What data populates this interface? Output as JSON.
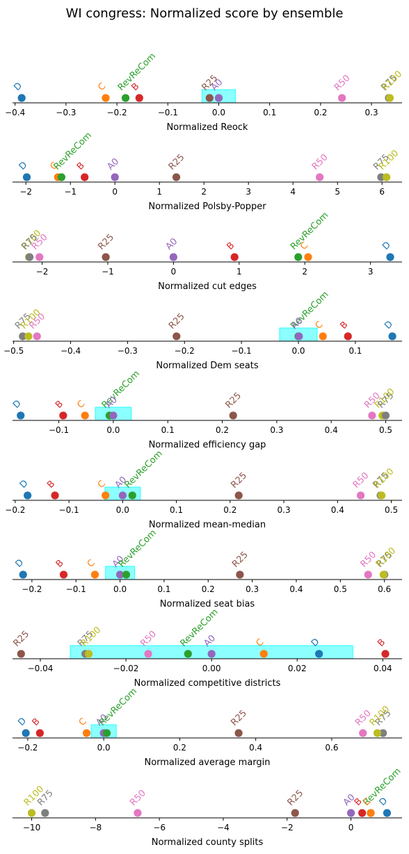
{
  "title": "WI congress: Normalized score by ensemble",
  "colors": {
    "D": "#1f77b4",
    "C": "#ff7f0e",
    "RevReCom": "#2ca02c",
    "B": "#d62728",
    "A0": "#9467bd",
    "R25": "#8c564b",
    "R50": "#e377c2",
    "R75": "#7f7f7f",
    "R100": "#bcbd22",
    "band": "#00ffff"
  },
  "chart_data": [
    {
      "type": "scatter",
      "xlabel": "Normalized Reock",
      "xlim": [
        -0.405,
        0.36
      ],
      "ticks": [
        -0.4,
        -0.3,
        -0.2,
        -0.1,
        0.0,
        0.1,
        0.2,
        0.3
      ],
      "tick_labels": [
        "−0.4",
        "−0.3",
        "−0.2",
        "−0.1",
        "0.0",
        "0.1",
        "0.2",
        "0.3"
      ],
      "band": [
        -0.033,
        0.033
      ],
      "points": [
        {
          "label": "D",
          "x": -0.387
        },
        {
          "label": "C",
          "x": -0.222
        },
        {
          "label": "RevReCom",
          "x": -0.183
        },
        {
          "label": "B",
          "x": -0.156
        },
        {
          "label": "R25",
          "x": -0.018
        },
        {
          "label": "A0",
          "x": 0.0
        },
        {
          "label": "R50",
          "x": 0.242
        },
        {
          "label": "R75",
          "x": 0.334
        },
        {
          "label": "R100",
          "x": 0.336
        }
      ]
    },
    {
      "type": "scatter",
      "xlabel": "Normalized Polsby-Popper",
      "xlim": [
        -2.3,
        6.45
      ],
      "ticks": [
        -2,
        -1,
        0,
        1,
        2,
        3,
        4,
        5,
        6
      ],
      "tick_labels": [
        "−2",
        "−1",
        "0",
        "1",
        "2",
        "3",
        "4",
        "5",
        "6"
      ],
      "band": null,
      "points": [
        {
          "label": "D",
          "x": -1.98
        },
        {
          "label": "C",
          "x": -1.28
        },
        {
          "label": "RevReCom",
          "x": -1.2
        },
        {
          "label": "B",
          "x": -0.68
        },
        {
          "label": "A0",
          "x": 0.0
        },
        {
          "label": "R25",
          "x": 1.38
        },
        {
          "label": "R50",
          "x": 4.6
        },
        {
          "label": "R75",
          "x": 5.98
        },
        {
          "label": "R100",
          "x": 6.1
        }
      ]
    },
    {
      "type": "scatter",
      "xlabel": "Normalized cut edges",
      "xlim": [
        -2.45,
        3.48
      ],
      "ticks": [
        -2,
        -1,
        0,
        1,
        2,
        3
      ],
      "tick_labels": [
        "−2",
        "−1",
        "0",
        "1",
        "2",
        "3"
      ],
      "band": null,
      "points": [
        {
          "label": "R100",
          "x": -2.2
        },
        {
          "label": "R75",
          "x": -2.19
        },
        {
          "label": "R50",
          "x": -2.04
        },
        {
          "label": "R25",
          "x": -1.03
        },
        {
          "label": "A0",
          "x": 0.0
        },
        {
          "label": "B",
          "x": 0.93
        },
        {
          "label": "RevReCom",
          "x": 1.9
        },
        {
          "label": "C",
          "x": 2.05
        },
        {
          "label": "D",
          "x": 3.3
        }
      ]
    },
    {
      "type": "scatter",
      "xlabel": "Normalized Dem seats",
      "xlim": [
        -0.502,
        0.182
      ],
      "ticks": [
        -0.5,
        -0.4,
        -0.3,
        -0.2,
        -0.1,
        0.0,
        0.1
      ],
      "tick_labels": [
        "−0.5",
        "−0.4",
        "−0.3",
        "−0.2",
        "−0.1",
        "0.0",
        "0.1"
      ],
      "band": [
        -0.033,
        0.033
      ],
      "points": [
        {
          "label": "R75",
          "x": -0.484
        },
        {
          "label": "R100",
          "x": -0.474
        },
        {
          "label": "R50",
          "x": -0.459
        },
        {
          "label": "R25",
          "x": -0.214
        },
        {
          "label": "RevReCom",
          "x": 0.0
        },
        {
          "label": "A0",
          "x": 0.001
        },
        {
          "label": "C",
          "x": 0.043
        },
        {
          "label": "B",
          "x": 0.087
        },
        {
          "label": "D",
          "x": 0.165
        }
      ]
    },
    {
      "type": "scatter",
      "xlabel": "Normalized efficiency gap",
      "xlim": [
        -0.185,
        0.53
      ],
      "ticks": [
        -0.1,
        0.0,
        0.1,
        0.2,
        0.3,
        0.4,
        0.5
      ],
      "tick_labels": [
        "−0.1",
        "0.0",
        "0.1",
        "0.2",
        "0.3",
        "0.4",
        "0.5"
      ],
      "band": [
        -0.033,
        0.033
      ],
      "points": [
        {
          "label": "D",
          "x": -0.17
        },
        {
          "label": "B",
          "x": -0.092
        },
        {
          "label": "C",
          "x": -0.052
        },
        {
          "label": "RevReCom",
          "x": -0.007
        },
        {
          "label": "A0",
          "x": 0.0
        },
        {
          "label": "R25",
          "x": 0.22
        },
        {
          "label": "R50",
          "x": 0.475
        },
        {
          "label": "R100",
          "x": 0.494
        },
        {
          "label": "R75",
          "x": 0.5
        }
      ]
    },
    {
      "type": "scatter",
      "xlabel": "Normalized mean-median",
      "xlim": [
        -0.205,
        0.52
      ],
      "ticks": [
        -0.2,
        -0.1,
        0.0,
        0.1,
        0.2,
        0.3,
        0.4,
        0.5
      ],
      "tick_labels": [
        "−0.2",
        "−0.1",
        "0.0",
        "0.1",
        "0.2",
        "0.3",
        "0.4",
        "0.5"
      ],
      "band": [
        -0.033,
        0.033
      ],
      "points": [
        {
          "label": "D",
          "x": -0.177
        },
        {
          "label": "B",
          "x": -0.126
        },
        {
          "label": "C",
          "x": -0.032
        },
        {
          "label": "A0",
          "x": 0.0
        },
        {
          "label": "RevReCom",
          "x": 0.018
        },
        {
          "label": "R25",
          "x": 0.216
        },
        {
          "label": "R50",
          "x": 0.443
        },
        {
          "label": "R75",
          "x": 0.48
        },
        {
          "label": "R100",
          "x": 0.482
        }
      ]
    },
    {
      "type": "scatter",
      "xlabel": "Normalized seat bias",
      "xlim": [
        -0.244,
        0.64
      ],
      "ticks": [
        -0.2,
        -0.1,
        0.0,
        0.1,
        0.2,
        0.3,
        0.4,
        0.5,
        0.6
      ],
      "tick_labels": [
        "−0.2",
        "−0.1",
        "0.0",
        "0.1",
        "0.2",
        "0.3",
        "0.4",
        "0.5",
        "0.6"
      ],
      "band": [
        -0.033,
        0.033
      ],
      "points": [
        {
          "label": "D",
          "x": -0.22
        },
        {
          "label": "B",
          "x": -0.128
        },
        {
          "label": "C",
          "x": -0.057
        },
        {
          "label": "A0",
          "x": 0.0
        },
        {
          "label": "RevReCom",
          "x": 0.014
        },
        {
          "label": "R25",
          "x": 0.272
        },
        {
          "label": "R50",
          "x": 0.563
        },
        {
          "label": "R75",
          "x": 0.6
        },
        {
          "label": "R100",
          "x": 0.598
        }
      ]
    },
    {
      "type": "scatter",
      "xlabel": "Normalized competitive districts",
      "xlim": [
        -0.0465,
        0.0445
      ],
      "ticks": [
        -0.04,
        -0.02,
        0.0,
        0.02,
        0.04
      ],
      "tick_labels": [
        "−0.04",
        "−0.02",
        "0.00",
        "0.02",
        "0.04"
      ],
      "band": [
        -0.033,
        0.033
      ],
      "points": [
        {
          "label": "R25",
          "x": -0.0445
        },
        {
          "label": "R75",
          "x": -0.0295
        },
        {
          "label": "R100",
          "x": -0.0287
        },
        {
          "label": "R50",
          "x": -0.0148
        },
        {
          "label": "RevReCom",
          "x": -0.0055
        },
        {
          "label": "A0",
          "x": 0.0
        },
        {
          "label": "C",
          "x": 0.0122
        },
        {
          "label": "D",
          "x": 0.0251
        },
        {
          "label": "B",
          "x": 0.0406
        }
      ]
    },
    {
      "type": "scatter",
      "xlabel": "Normalized average margin",
      "xlim": [
        -0.24,
        0.785
      ],
      "ticks": [
        -0.2,
        0.0,
        0.2,
        0.4,
        0.6
      ],
      "tick_labels": [
        "−0.2",
        "0.0",
        "0.2",
        "0.4",
        "0.6"
      ],
      "band": [
        -0.033,
        0.033
      ],
      "points": [
        {
          "label": "D",
          "x": -0.205
        },
        {
          "label": "B",
          "x": -0.168
        },
        {
          "label": "C",
          "x": -0.045
        },
        {
          "label": "A0",
          "x": 0.0
        },
        {
          "label": "RevReCom",
          "x": 0.008
        },
        {
          "label": "R25",
          "x": 0.355
        },
        {
          "label": "R50",
          "x": 0.682
        },
        {
          "label": "R75",
          "x": 0.735
        },
        {
          "label": "R100",
          "x": 0.72
        }
      ]
    },
    {
      "type": "scatter",
      "xlabel": "Normalized county splits",
      "xlim": [
        -10.6,
        1.6
      ],
      "ticks": [
        -10,
        -8,
        -6,
        -4,
        -2,
        0
      ],
      "tick_labels": [
        "−10",
        "−8",
        "−6",
        "−4",
        "−2",
        "0"
      ],
      "band": null,
      "points": [
        {
          "label": "R100",
          "x": -10.0
        },
        {
          "label": "R75",
          "x": -9.58
        },
        {
          "label": "R50",
          "x": -6.68
        },
        {
          "label": "R25",
          "x": -1.75
        },
        {
          "label": "A0",
          "x": 0.0
        },
        {
          "label": "B",
          "x": 0.35
        },
        {
          "label": "RevReCom",
          "x": 0.62
        },
        {
          "label": "C",
          "x": 0.62
        },
        {
          "label": "D",
          "x": 1.13
        }
      ]
    }
  ]
}
